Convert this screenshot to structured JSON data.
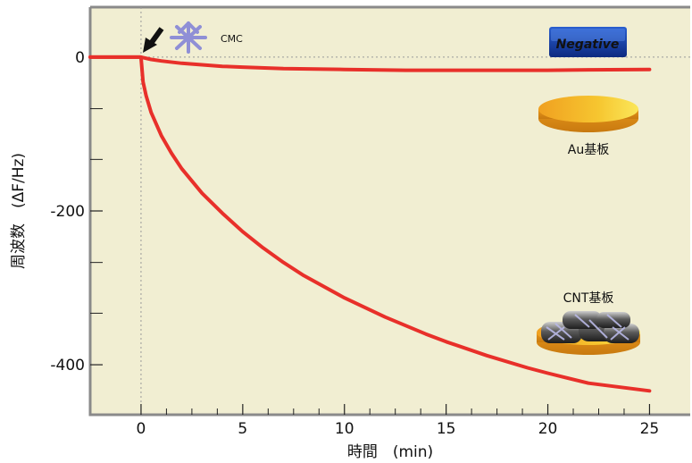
{
  "chart_data": {
    "type": "line",
    "xlabel": "時間　(min)",
    "ylabel": "周波数　(ΔF/Hz)",
    "xlim": [
      -2.5,
      27
    ],
    "ylim": [
      -465,
      65
    ],
    "x_ticks": [
      0,
      5,
      10,
      15,
      20,
      25
    ],
    "x_tick_labels": [
      "0",
      "5",
      "10",
      "15",
      "20",
      "25"
    ],
    "x_minor_ticks": [
      1.25,
      2.5,
      3.75,
      6.25,
      7.5,
      8.75,
      11.25,
      12.5,
      13.75,
      16.25,
      17.5,
      18.75,
      21.25,
      22.5,
      23.75
    ],
    "y_ticks": [
      0,
      -200,
      -400
    ],
    "y_tick_labels": [
      "0",
      "-200",
      "-400"
    ],
    "y_minor_ticks": [
      -67,
      -133,
      -267,
      -333
    ],
    "grid": false,
    "background_color": "#f1eed2",
    "line_color": "#e8302a",
    "series": [
      {
        "name": "",
        "x": [
          -2.5,
          -0.5,
          0,
          0.5,
          1,
          2,
          3,
          4,
          5,
          7,
          10,
          13,
          15,
          18,
          20,
          22,
          25
        ],
        "y": [
          0,
          0,
          0,
          -3,
          -5,
          -8,
          -10,
          -12,
          -13,
          -15,
          -16,
          -17,
          -17,
          -17,
          -17,
          -16.5,
          -16
        ]
      },
      {
        "name": "",
        "x": [
          -2.5,
          -0.5,
          0,
          0.1,
          0.25,
          0.5,
          1,
          1.5,
          2,
          3,
          4,
          5,
          6,
          7,
          8,
          10,
          12,
          14,
          15,
          17,
          19,
          20,
          22,
          25
        ],
        "y": [
          0,
          0,
          0,
          -32,
          -50,
          -72,
          -102,
          -125,
          -145,
          -177,
          -203,
          -227,
          -248,
          -267,
          -284,
          -313,
          -338,
          -360,
          -370,
          -388,
          -404,
          -411,
          -424,
          -434
        ]
      }
    ],
    "annotations": [
      {
        "text": "CMC",
        "x": 4,
        "y": 30
      },
      {
        "text": "Negative",
        "x": 21,
        "y": 20
      },
      {
        "text": "Au基板",
        "x": 21.5,
        "y": -118
      },
      {
        "text": "CNT基板",
        "x": 21.5,
        "y": -314
      }
    ]
  }
}
